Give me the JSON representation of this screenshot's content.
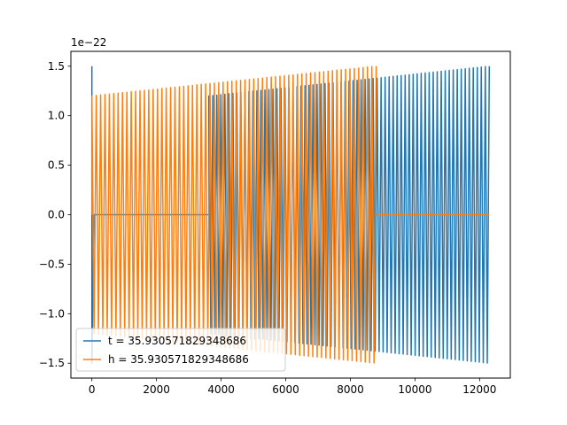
{
  "chart_data": {
    "type": "line",
    "title": "",
    "xlabel": "",
    "ylabel": "",
    "y_offset_label": "1e−22",
    "xlim": [
      -650,
      12950
    ],
    "ylim": [
      -1.65,
      1.65
    ],
    "xticks": [
      0,
      2000,
      4000,
      6000,
      8000,
      10000,
      12000
    ],
    "yticks": [
      -1.5,
      -1.0,
      -0.5,
      0.0,
      0.5,
      1.0,
      1.5
    ],
    "xtick_labels": [
      "0",
      "2000",
      "4000",
      "6000",
      "8000",
      "10000",
      "12000"
    ],
    "ytick_labels": [
      "−1.5",
      "−1.0",
      "−0.5",
      "0.0",
      "0.5",
      "1.0",
      "1.5"
    ],
    "grid": false,
    "legend_position": "lower-left",
    "series": [
      {
        "name": "t = 35.930571829348686",
        "color": "#1f77b4",
        "description_points": [
          {
            "x": 0,
            "y": 1.5
          },
          {
            "x": 0,
            "y": -1.5
          },
          {
            "x": 3650,
            "y": 1.2
          },
          {
            "x": 12300,
            "y": 1.5
          },
          {
            "x": 12300,
            "y": -1.5
          }
        ],
        "segments": [
          {
            "kind": "spike",
            "x": [
              0,
              60
            ],
            "amp": 1.5
          },
          {
            "kind": "zero",
            "x": [
              60,
              3620
            ]
          },
          {
            "kind": "oscillation",
            "x": [
              3620,
              12300
            ],
            "amp_start": 1.2,
            "amp_end": 1.5,
            "cycles": 70
          }
        ]
      },
      {
        "name": "h = 35.930571829348686",
        "color": "#ff7f0e",
        "segments": [
          {
            "kind": "oscillation",
            "x": [
              0,
              8800
            ],
            "amp_start": 1.2,
            "amp_end": 1.5,
            "cycles": 65
          },
          {
            "kind": "zero",
            "x": [
              8800,
              12300
            ]
          }
        ]
      }
    ]
  }
}
